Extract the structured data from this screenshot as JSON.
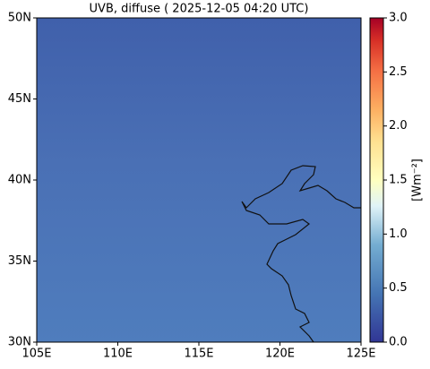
{
  "chart_data": {
    "type": "map",
    "title": "UVB, diffuse ( 2025-12-05 04:20 UTC)",
    "xlim": [
      105,
      125
    ],
    "ylim": [
      30,
      50
    ],
    "xticks": [
      {
        "value": 105,
        "label": "105E"
      },
      {
        "value": 110,
        "label": "110E"
      },
      {
        "value": 115,
        "label": "115E"
      },
      {
        "value": 120,
        "label": "120E"
      },
      {
        "value": 125,
        "label": "125E"
      }
    ],
    "yticks": [
      {
        "value": 30,
        "label": "30N"
      },
      {
        "value": 35,
        "label": "35N"
      },
      {
        "value": 40,
        "label": "40N"
      },
      {
        "value": 45,
        "label": "45N"
      },
      {
        "value": 50,
        "label": "50N"
      }
    ],
    "colorbar": {
      "label": "[Wm⁻²]",
      "lim": [
        0,
        3
      ],
      "ticks": [
        {
          "value": 0,
          "label": "0.0"
        },
        {
          "value": 0.5,
          "label": "0.5"
        },
        {
          "value": 1,
          "label": "1.0"
        },
        {
          "value": 1.5,
          "label": "1.5"
        },
        {
          "value": 2,
          "label": "2.0"
        },
        {
          "value": 2.5,
          "label": "2.5"
        },
        {
          "value": 3,
          "label": "3.0"
        }
      ]
    }
  }
}
